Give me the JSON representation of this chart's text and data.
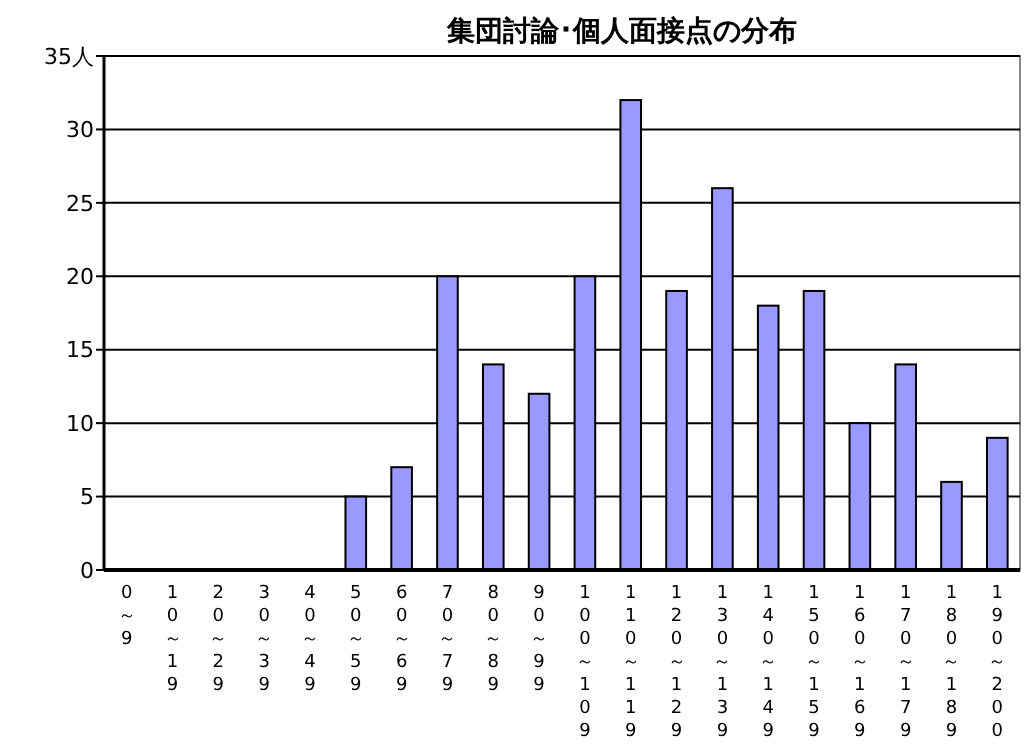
{
  "chart_data": {
    "type": "bar",
    "title": "集団討論･個人面接点の分布",
    "categories": [
      "0～9",
      "10～19",
      "20～29",
      "30～39",
      "40～49",
      "50～59",
      "60～69",
      "70～79",
      "80～89",
      "90～99",
      "100～109",
      "110～119",
      "120～129",
      "130～139",
      "140～149",
      "150～159",
      "160～169",
      "170～179",
      "180～189",
      "190～200"
    ],
    "values": [
      0,
      0,
      0,
      0,
      0,
      5,
      7,
      20,
      14,
      12,
      20,
      32,
      19,
      26,
      18,
      19,
      10,
      14,
      6,
      9
    ],
    "color": "#9999ff",
    "ylim": [
      0,
      35
    ],
    "yticks": [
      0,
      5,
      10,
      15,
      20,
      25,
      30,
      {
        "value": 35,
        "label": "35人"
      }
    ],
    "grid": "y"
  }
}
